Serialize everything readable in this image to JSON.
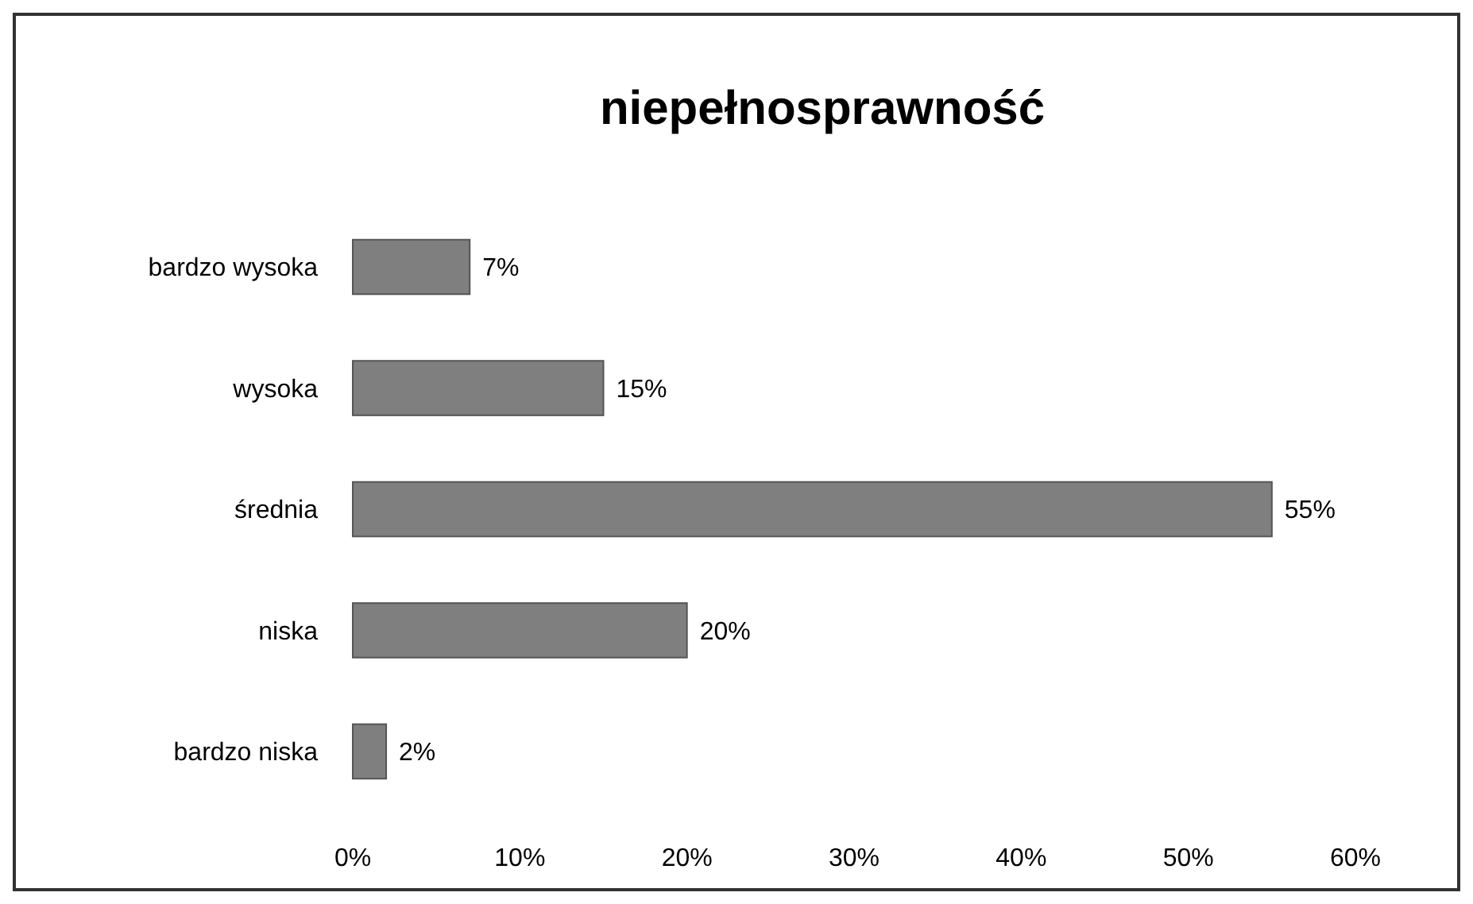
{
  "chart_data": {
    "type": "bar",
    "orientation": "horizontal",
    "title": "niepełnosprawność",
    "categories": [
      "bardzo wysoka",
      "wysoka",
      "średnia",
      "niska",
      "bardzo niska"
    ],
    "values": [
      7,
      15,
      55,
      20,
      2
    ],
    "value_labels": [
      "7%",
      "15%",
      "55%",
      "20%",
      "2%"
    ],
    "color": "#7f7f7f",
    "xlim": [
      0,
      60
    ],
    "xticks": [
      {
        "value": 0,
        "label": "0%"
      },
      {
        "value": 10,
        "label": "10%"
      },
      {
        "value": 20,
        "label": "20%"
      },
      {
        "value": 30,
        "label": "30%"
      },
      {
        "value": 40,
        "label": "40%"
      },
      {
        "value": 50,
        "label": "50%"
      },
      {
        "value": 60,
        "label": "60%"
      }
    ],
    "grid": false
  }
}
